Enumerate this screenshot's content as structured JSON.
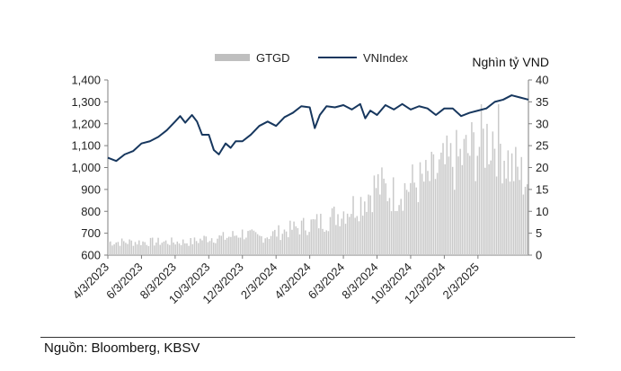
{
  "chart_data": {
    "type": "bar-line-combo",
    "title": "",
    "unit_label_right": "Nghìn tỷ VND",
    "legend": [
      {
        "name": "GTGD",
        "kind": "bar",
        "color": "#bfbfbf"
      },
      {
        "name": "VNIndex",
        "kind": "line",
        "color": "#17375e"
      }
    ],
    "left_axis": {
      "label": "",
      "ylim": [
        600,
        1400
      ],
      "ticks": [
        "600",
        "700",
        "800",
        "900",
        "1,000",
        "1,100",
        "1,200",
        "1,300",
        "1,400"
      ],
      "tick_values": [
        600,
        700,
        800,
        900,
        1000,
        1100,
        1200,
        1300,
        1400
      ]
    },
    "right_axis": {
      "label": "Nghìn tỷ VND",
      "ylim": [
        0,
        40
      ],
      "ticks": [
        "0",
        "5",
        "10",
        "15",
        "20",
        "25",
        "30",
        "35",
        "40"
      ],
      "tick_values": [
        0,
        5,
        10,
        15,
        20,
        25,
        30,
        35,
        40
      ]
    },
    "x_axis": {
      "start_month": 3,
      "total_months": 25,
      "tick_labels": [
        "4/3/2023",
        "6/3/2023",
        "8/3/2023",
        "10/3/2023",
        "12/3/2023",
        "2/3/2024",
        "4/3/2024",
        "6/3/2024",
        "8/3/2024",
        "10/3/2024",
        "12/3/2024",
        "2/3/2025"
      ],
      "tick_month_index": [
        0,
        2,
        4,
        6,
        8,
        10,
        12,
        14,
        16,
        18,
        20,
        22
      ]
    },
    "series": [
      {
        "name": "VNIndex",
        "axis": "left",
        "x_month_index": [
          0,
          0.5,
          1,
          1.5,
          2,
          2.5,
          3,
          3.5,
          4,
          4.3,
          4.6,
          5,
          5.3,
          5.6,
          6,
          6.3,
          6.6,
          7,
          7.3,
          7.6,
          8,
          8.5,
          9,
          9.5,
          10,
          10.5,
          11,
          11.5,
          12,
          12.3,
          12.6,
          13,
          13.5,
          14,
          14.5,
          15,
          15.3,
          15.6,
          16,
          16.5,
          17,
          17.5,
          18,
          18.5,
          19,
          19.5,
          20,
          20.5,
          21,
          21.5,
          22,
          22.5,
          23,
          23.5,
          24,
          24.5,
          25
        ],
        "values": [
          1045,
          1030,
          1060,
          1075,
          1110,
          1120,
          1140,
          1170,
          1210,
          1235,
          1205,
          1240,
          1210,
          1150,
          1150,
          1080,
          1060,
          1110,
          1090,
          1120,
          1120,
          1150,
          1190,
          1210,
          1190,
          1230,
          1250,
          1280,
          1275,
          1180,
          1240,
          1280,
          1275,
          1285,
          1265,
          1290,
          1225,
          1260,
          1240,
          1285,
          1265,
          1290,
          1265,
          1280,
          1270,
          1240,
          1270,
          1270,
          1235,
          1250,
          1260,
          1270,
          1300,
          1310,
          1330,
          1320,
          1310
        ]
      },
      {
        "name": "GTGD",
        "axis": "right",
        "x_month_index": [
          0,
          1,
          2,
          3,
          4,
          5,
          6,
          7,
          8,
          9,
          10,
          11,
          12,
          13,
          14,
          15,
          16,
          17,
          18,
          19,
          20,
          21,
          22,
          23,
          24,
          25
        ],
        "values": [
          3,
          3,
          3,
          3,
          3,
          3,
          4,
          4,
          5,
          4,
          5,
          6,
          7,
          8,
          10,
          12,
          16,
          14,
          16,
          17,
          20,
          22,
          25,
          28,
          20,
          17
        ]
      }
    ]
  },
  "source": "Nguồn: Bloomberg, KBSV"
}
